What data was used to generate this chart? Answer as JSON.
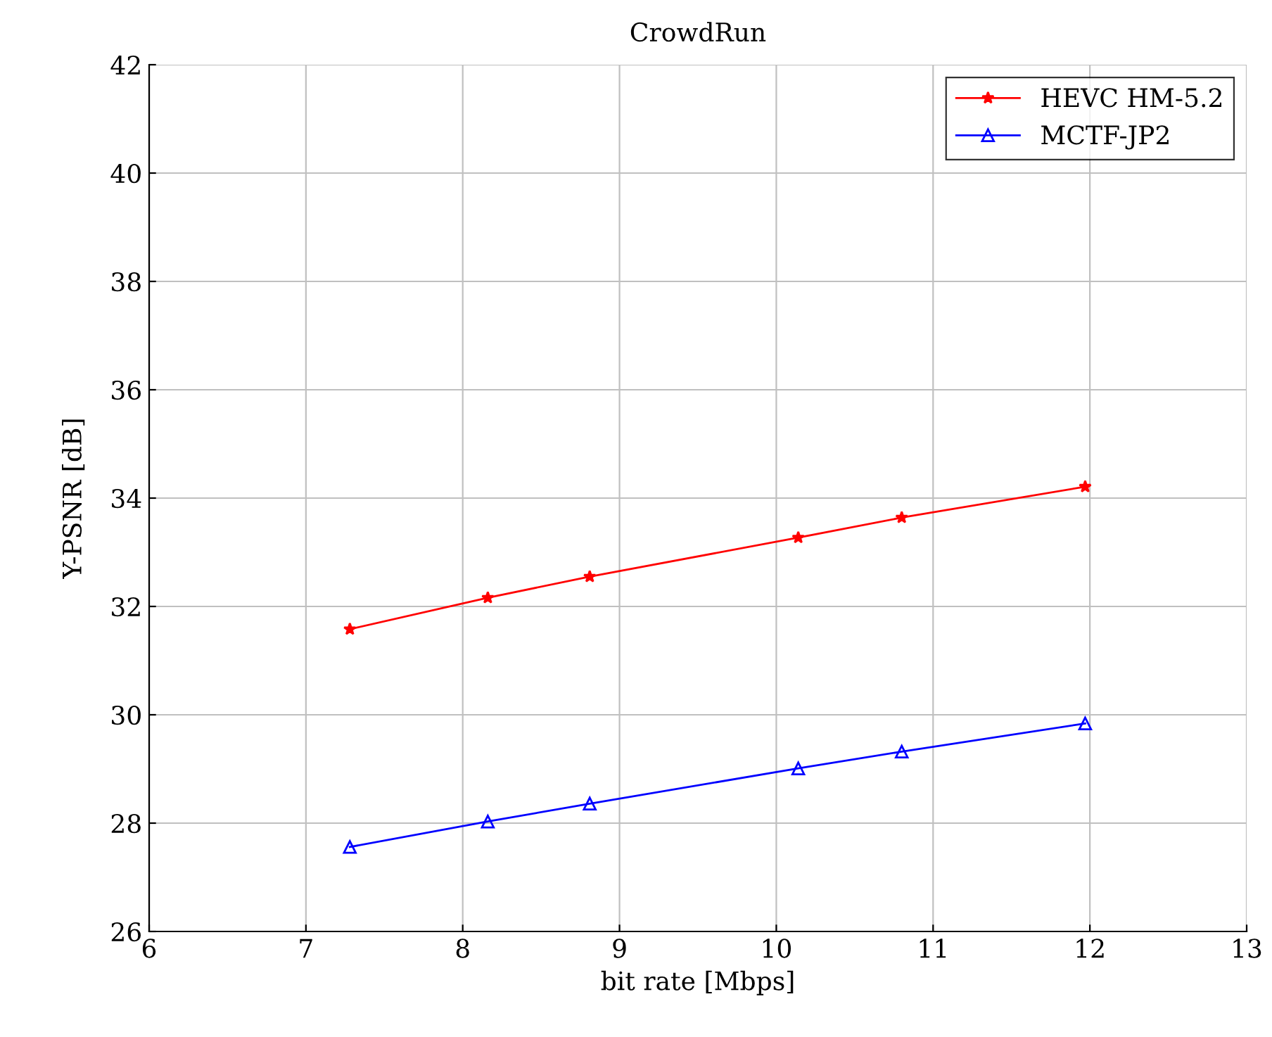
{
  "chart_data": {
    "type": "line",
    "title": "CrowdRun",
    "xlabel": "bit rate [Mbps]",
    "ylabel": "Y-PSNR [dB]",
    "x": [
      7.28,
      8.16,
      8.81,
      10.14,
      10.8,
      11.97
    ],
    "series": [
      {
        "name": "HEVC HM-5.2",
        "color": "#ff0000",
        "marker": "star",
        "values": [
          31.58,
          32.16,
          32.55,
          33.27,
          33.64,
          34.21
        ]
      },
      {
        "name": "MCTF-JP2",
        "color": "#0000ff",
        "marker": "triangle",
        "values": [
          27.56,
          28.03,
          28.36,
          29.01,
          29.32,
          29.84
        ]
      }
    ],
    "xlim": [
      6,
      13
    ],
    "xticks": [
      6,
      7,
      8,
      9,
      10,
      11,
      12,
      13
    ],
    "ylim": [
      26,
      42
    ],
    "yticks": [
      26,
      28,
      30,
      32,
      34,
      36,
      38,
      40,
      42
    ],
    "grid": true,
    "legend": "top right",
    "line_style": "solid"
  }
}
